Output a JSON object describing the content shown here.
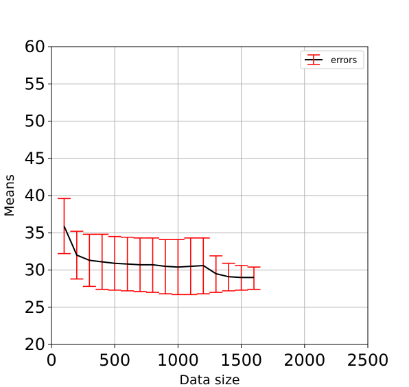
{
  "chart_data": {
    "type": "line",
    "title": "",
    "xlabel": "Data size",
    "ylabel": "Means",
    "xlim": [
      0,
      2500
    ],
    "ylim": [
      20,
      60
    ],
    "xticks": [
      0,
      500,
      1000,
      1500,
      2000,
      2500
    ],
    "yticks": [
      20,
      25,
      30,
      35,
      40,
      45,
      50,
      55,
      60
    ],
    "grid": true,
    "legend_position": "top-right",
    "series": [
      {
        "name": "errors",
        "line_color": "#000000",
        "error_color": "#ff0000",
        "x": [
          100,
          200,
          300,
          400,
          500,
          600,
          700,
          800,
          900,
          1000,
          1100,
          1200,
          1300,
          1400,
          1500,
          1600
        ],
        "y": [
          35.9,
          32.0,
          31.3,
          31.1,
          30.9,
          30.8,
          30.7,
          30.7,
          30.5,
          30.4,
          30.5,
          30.6,
          29.5,
          29.1,
          29.0,
          29.0
        ],
        "err_low": [
          32.2,
          28.8,
          27.8,
          27.4,
          27.3,
          27.2,
          27.1,
          27.0,
          26.8,
          26.7,
          26.7,
          26.8,
          27.0,
          27.2,
          27.3,
          27.4
        ],
        "err_high": [
          39.6,
          35.2,
          34.8,
          34.8,
          34.5,
          34.4,
          34.3,
          34.3,
          34.1,
          34.1,
          34.3,
          34.3,
          31.9,
          30.9,
          30.6,
          30.4
        ]
      }
    ]
  }
}
